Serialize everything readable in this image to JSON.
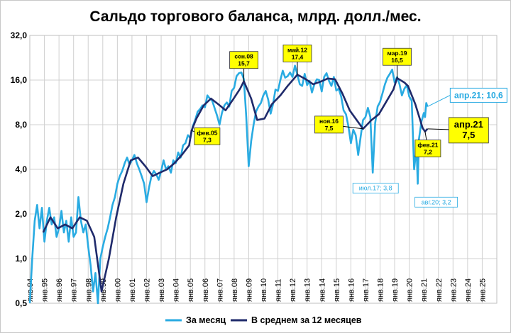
{
  "chart_data": {
    "type": "line",
    "title": "Сальдо торгового баланса, млрд. долл./мес.",
    "y_scale": "log2",
    "ylim": [
      0.5,
      32.0
    ],
    "y_ticks": [
      "0,5",
      "1,0",
      "2,0",
      "4,0",
      "8,0",
      "16,0",
      "32,0"
    ],
    "y_tick_values": [
      0.5,
      1,
      2,
      4,
      8,
      16,
      32
    ],
    "xlim": [
      "1994-01",
      "2026-01"
    ],
    "x_ticks": [
      "янв.94",
      "янв.95",
      "янв.96",
      "янв.97",
      "янв.98",
      "янв.99",
      "янв.00",
      "янв.01",
      "янв.02",
      "янв.03",
      "янв.04",
      "янв.05",
      "янв.06",
      "янв.07",
      "янв.08",
      "янв.09",
      "янв.10",
      "янв.11",
      "янв.12",
      "янв.13",
      "янв.14",
      "янв.15",
      "янв.16",
      "янв.17",
      "янв.18",
      "янв.19",
      "янв.20",
      "янв.21",
      "янв.22",
      "янв.23",
      "янв.24",
      "янв.25"
    ],
    "grid": true,
    "legend_position": "bottom",
    "colors": {
      "monthly": "#29abe2",
      "average": "#1f2a6b",
      "callout_fill": "#ffff00"
    },
    "series": [
      {
        "name": "За месяц",
        "points": [
          [
            "1994-01",
            0.5
          ],
          [
            "1994-03",
            1.0
          ],
          [
            "1994-05",
            1.8
          ],
          [
            "1994-07",
            2.3
          ],
          [
            "1994-09",
            1.6
          ],
          [
            "1994-11",
            2.2
          ],
          [
            "1995-01",
            1.3
          ],
          [
            "1995-03",
            1.8
          ],
          [
            "1995-05",
            2.2
          ],
          [
            "1995-07",
            1.7
          ],
          [
            "1995-09",
            1.9
          ],
          [
            "1995-11",
            1.4
          ],
          [
            "1996-01",
            1.6
          ],
          [
            "1996-03",
            2.1
          ],
          [
            "1996-05",
            1.5
          ],
          [
            "1996-07",
            1.8
          ],
          [
            "1996-09",
            1.3
          ],
          [
            "1996-11",
            1.9
          ],
          [
            "1997-01",
            1.4
          ],
          [
            "1997-03",
            1.5
          ],
          [
            "1997-05",
            2.6
          ],
          [
            "1997-07",
            1.8
          ],
          [
            "1997-09",
            1.5
          ],
          [
            "1997-11",
            1.7
          ],
          [
            "1998-01",
            1.2
          ],
          [
            "1998-03",
            0.9
          ],
          [
            "1998-05",
            0.6
          ],
          [
            "1998-07",
            0.8
          ],
          [
            "1998-09",
            0.5
          ],
          [
            "1998-11",
            1.0
          ],
          [
            "1999-01",
            1.2
          ],
          [
            "1999-03",
            1.4
          ],
          [
            "1999-05",
            1.6
          ],
          [
            "1999-07",
            1.9
          ],
          [
            "1999-09",
            2.3
          ],
          [
            "1999-11",
            2.6
          ],
          [
            "2000-01",
            3.2
          ],
          [
            "2000-03",
            3.6
          ],
          [
            "2000-05",
            3.9
          ],
          [
            "2000-07",
            4.4
          ],
          [
            "2000-09",
            4.8
          ],
          [
            "2000-11",
            4.3
          ],
          [
            "2001-01",
            4.6
          ],
          [
            "2001-03",
            5.0
          ],
          [
            "2001-05",
            4.4
          ],
          [
            "2001-07",
            4.0
          ],
          [
            "2001-09",
            3.6
          ],
          [
            "2001-11",
            3.2
          ],
          [
            "2002-01",
            2.4
          ],
          [
            "2002-03",
            3.0
          ],
          [
            "2002-05",
            3.6
          ],
          [
            "2002-07",
            3.9
          ],
          [
            "2002-09",
            3.7
          ],
          [
            "2002-11",
            3.4
          ],
          [
            "2003-01",
            3.9
          ],
          [
            "2003-03",
            4.6
          ],
          [
            "2003-05",
            4.0
          ],
          [
            "2003-07",
            4.2
          ],
          [
            "2003-09",
            3.8
          ],
          [
            "2003-11",
            4.6
          ],
          [
            "2004-01",
            4.4
          ],
          [
            "2004-03",
            5.2
          ],
          [
            "2004-05",
            4.8
          ],
          [
            "2004-07",
            5.8
          ],
          [
            "2004-09",
            6.0
          ],
          [
            "2004-11",
            6.8
          ],
          [
            "2005-01",
            6.5
          ],
          [
            "2005-03",
            7.8
          ],
          [
            "2005-05",
            8.6
          ],
          [
            "2005-07",
            9.8
          ],
          [
            "2005-09",
            10.2
          ],
          [
            "2005-11",
            10.8
          ],
          [
            "2006-01",
            10.5
          ],
          [
            "2006-03",
            12.6
          ],
          [
            "2006-05",
            12.0
          ],
          [
            "2006-07",
            11.6
          ],
          [
            "2006-09",
            10.3
          ],
          [
            "2006-11",
            9.2
          ],
          [
            "2007-01",
            8.0
          ],
          [
            "2007-03",
            9.6
          ],
          [
            "2007-05",
            10.8
          ],
          [
            "2007-07",
            11.3
          ],
          [
            "2007-09",
            10.6
          ],
          [
            "2007-11",
            13.5
          ],
          [
            "2008-01",
            14.2
          ],
          [
            "2008-03",
            17.0
          ],
          [
            "2008-05",
            17.8
          ],
          [
            "2008-07",
            18.0
          ],
          [
            "2008-09",
            16.2
          ],
          [
            "2008-11",
            9.0
          ],
          [
            "2009-01",
            4.2
          ],
          [
            "2009-03",
            6.2
          ],
          [
            "2009-05",
            8.0
          ],
          [
            "2009-07",
            9.8
          ],
          [
            "2009-09",
            10.6
          ],
          [
            "2009-11",
            11.2
          ],
          [
            "2010-01",
            12.6
          ],
          [
            "2010-03",
            13.5
          ],
          [
            "2010-05",
            11.8
          ],
          [
            "2010-07",
            9.5
          ],
          [
            "2010-09",
            11.0
          ],
          [
            "2010-11",
            13.8
          ],
          [
            "2011-01",
            13.5
          ],
          [
            "2011-03",
            16.0
          ],
          [
            "2011-05",
            18.5
          ],
          [
            "2011-07",
            16.6
          ],
          [
            "2011-09",
            17.0
          ],
          [
            "2011-11",
            18.0
          ],
          [
            "2012-01",
            16.8
          ],
          [
            "2012-03",
            20.0
          ],
          [
            "2012-05",
            17.4
          ],
          [
            "2012-07",
            15.0
          ],
          [
            "2012-09",
            14.6
          ],
          [
            "2012-11",
            17.6
          ],
          [
            "2013-01",
            14.8
          ],
          [
            "2013-03",
            15.8
          ],
          [
            "2013-05",
            13.2
          ],
          [
            "2013-07",
            15.0
          ],
          [
            "2013-09",
            16.2
          ],
          [
            "2013-11",
            16.0
          ],
          [
            "2014-01",
            13.4
          ],
          [
            "2014-03",
            16.8
          ],
          [
            "2014-05",
            17.8
          ],
          [
            "2014-07",
            15.8
          ],
          [
            "2014-09",
            14.6
          ],
          [
            "2014-11",
            16.8
          ],
          [
            "2015-01",
            13.6
          ],
          [
            "2015-03",
            14.0
          ],
          [
            "2015-05",
            12.4
          ],
          [
            "2015-07",
            10.0
          ],
          [
            "2015-09",
            9.4
          ],
          [
            "2015-11",
            7.8
          ],
          [
            "2016-01",
            6.0
          ],
          [
            "2016-03",
            7.4
          ],
          [
            "2016-05",
            6.8
          ],
          [
            "2016-07",
            5.0
          ],
          [
            "2016-09",
            6.6
          ],
          [
            "2016-11",
            8.6
          ],
          [
            "2017-01",
            9.0
          ],
          [
            "2017-03",
            10.4
          ],
          [
            "2017-05",
            9.0
          ],
          [
            "2017-07",
            3.8
          ],
          [
            "2017-09",
            8.2
          ],
          [
            "2017-11",
            10.6
          ],
          [
            "2018-01",
            11.4
          ],
          [
            "2018-03",
            13.0
          ],
          [
            "2018-05",
            15.0
          ],
          [
            "2018-07",
            16.6
          ],
          [
            "2018-09",
            17.6
          ],
          [
            "2018-11",
            18.8
          ],
          [
            "2019-01",
            15.4
          ],
          [
            "2019-03",
            16.8
          ],
          [
            "2019-05",
            15.0
          ],
          [
            "2019-07",
            12.6
          ],
          [
            "2019-09",
            14.0
          ],
          [
            "2019-11",
            14.8
          ],
          [
            "2020-01",
            12.4
          ],
          [
            "2020-03",
            11.6
          ],
          [
            "2020-05",
            4.0
          ],
          [
            "2020-07",
            5.6
          ],
          [
            "2020-08",
            3.2
          ],
          [
            "2020-09",
            6.4
          ],
          [
            "2020-11",
            8.4
          ],
          [
            "2021-01",
            9.6
          ],
          [
            "2021-02",
            9.0
          ],
          [
            "2021-03",
            11.2
          ],
          [
            "2021-04",
            10.6
          ]
        ]
      },
      {
        "name": "В среднем за 12 месяцев",
        "points": [
          [
            "1994-12",
            1.5
          ],
          [
            "1995-06",
            1.9
          ],
          [
            "1995-12",
            1.6
          ],
          [
            "1996-06",
            1.7
          ],
          [
            "1996-12",
            1.6
          ],
          [
            "1997-06",
            1.9
          ],
          [
            "1997-12",
            1.8
          ],
          [
            "1998-06",
            1.4
          ],
          [
            "1998-12",
            0.6
          ],
          [
            "1999-06",
            1.0
          ],
          [
            "1999-12",
            1.9
          ],
          [
            "2000-06",
            3.2
          ],
          [
            "2000-12",
            4.6
          ],
          [
            "2001-06",
            4.8
          ],
          [
            "2001-12",
            4.2
          ],
          [
            "2002-06",
            3.6
          ],
          [
            "2002-12",
            3.8
          ],
          [
            "2003-06",
            4.0
          ],
          [
            "2003-12",
            4.4
          ],
          [
            "2004-06",
            5.0
          ],
          [
            "2004-12",
            5.8
          ],
          [
            "2005-02",
            7.3
          ],
          [
            "2005-06",
            8.8
          ],
          [
            "2005-12",
            10.8
          ],
          [
            "2006-06",
            12.0
          ],
          [
            "2006-12",
            11.0
          ],
          [
            "2007-06",
            10.0
          ],
          [
            "2007-12",
            11.8
          ],
          [
            "2008-06",
            14.0
          ],
          [
            "2008-09",
            15.7
          ],
          [
            "2009-03",
            12.0
          ],
          [
            "2009-08",
            8.6
          ],
          [
            "2010-02",
            8.8
          ],
          [
            "2010-08",
            11.0
          ],
          [
            "2011-03",
            12.6
          ],
          [
            "2011-09",
            14.6
          ],
          [
            "2012-05",
            17.4
          ],
          [
            "2012-12",
            16.2
          ],
          [
            "2013-06",
            15.0
          ],
          [
            "2013-12",
            15.6
          ],
          [
            "2014-06",
            16.4
          ],
          [
            "2014-12",
            16.2
          ],
          [
            "2015-06",
            13.0
          ],
          [
            "2015-12",
            10.0
          ],
          [
            "2016-11",
            7.5
          ],
          [
            "2017-06",
            8.6
          ],
          [
            "2017-12",
            9.4
          ],
          [
            "2018-06",
            11.4
          ],
          [
            "2018-12",
            13.8
          ],
          [
            "2019-03",
            16.5
          ],
          [
            "2019-09",
            15.4
          ],
          [
            "2019-12",
            14.6
          ],
          [
            "2020-06",
            11.0
          ],
          [
            "2020-12",
            7.6
          ],
          [
            "2021-02",
            7.2
          ],
          [
            "2021-04",
            7.5
          ]
        ]
      }
    ],
    "annotations": [
      {
        "id": "feb05",
        "text": [
          "фев.05",
          "7,3"
        ],
        "style": "callout",
        "at": [
          "2005-02",
          7.3
        ]
      },
      {
        "id": "sep08",
        "text": [
          "сен.08",
          "15,7"
        ],
        "style": "callout",
        "at": [
          "2008-09",
          15.7
        ]
      },
      {
        "id": "may12",
        "text": [
          "май.12",
          "17,4"
        ],
        "style": "callout",
        "at": [
          "2012-05",
          17.4
        ]
      },
      {
        "id": "nov16",
        "text": [
          "ноя.16",
          "7,5"
        ],
        "style": "callout",
        "at": [
          "2016-11",
          7.5
        ]
      },
      {
        "id": "mar19",
        "text": [
          "мар.19",
          "16,5"
        ],
        "style": "callout",
        "at": [
          "2019-03",
          16.5
        ]
      },
      {
        "id": "feb21",
        "text": [
          "фев.21",
          "7,2"
        ],
        "style": "callout",
        "at": [
          "2021-02",
          7.2
        ]
      },
      {
        "id": "apr21avg",
        "text": [
          "апр.21",
          "7,5"
        ],
        "style": "callout-big",
        "at": [
          "2021-04",
          7.5
        ]
      },
      {
        "id": "apr21mon",
        "text": [
          "апр.21; 10,6"
        ],
        "style": "box-cyan",
        "at": [
          "2021-04",
          10.6
        ]
      },
      {
        "id": "jul17",
        "text": [
          "июл.17; 3,8"
        ],
        "style": "label-cyan",
        "at": [
          "2017-07",
          3.8
        ]
      },
      {
        "id": "aug20",
        "text": [
          "авг.20; 3,2"
        ],
        "style": "label-cyan",
        "at": [
          "2020-08",
          3.2
        ]
      }
    ]
  }
}
